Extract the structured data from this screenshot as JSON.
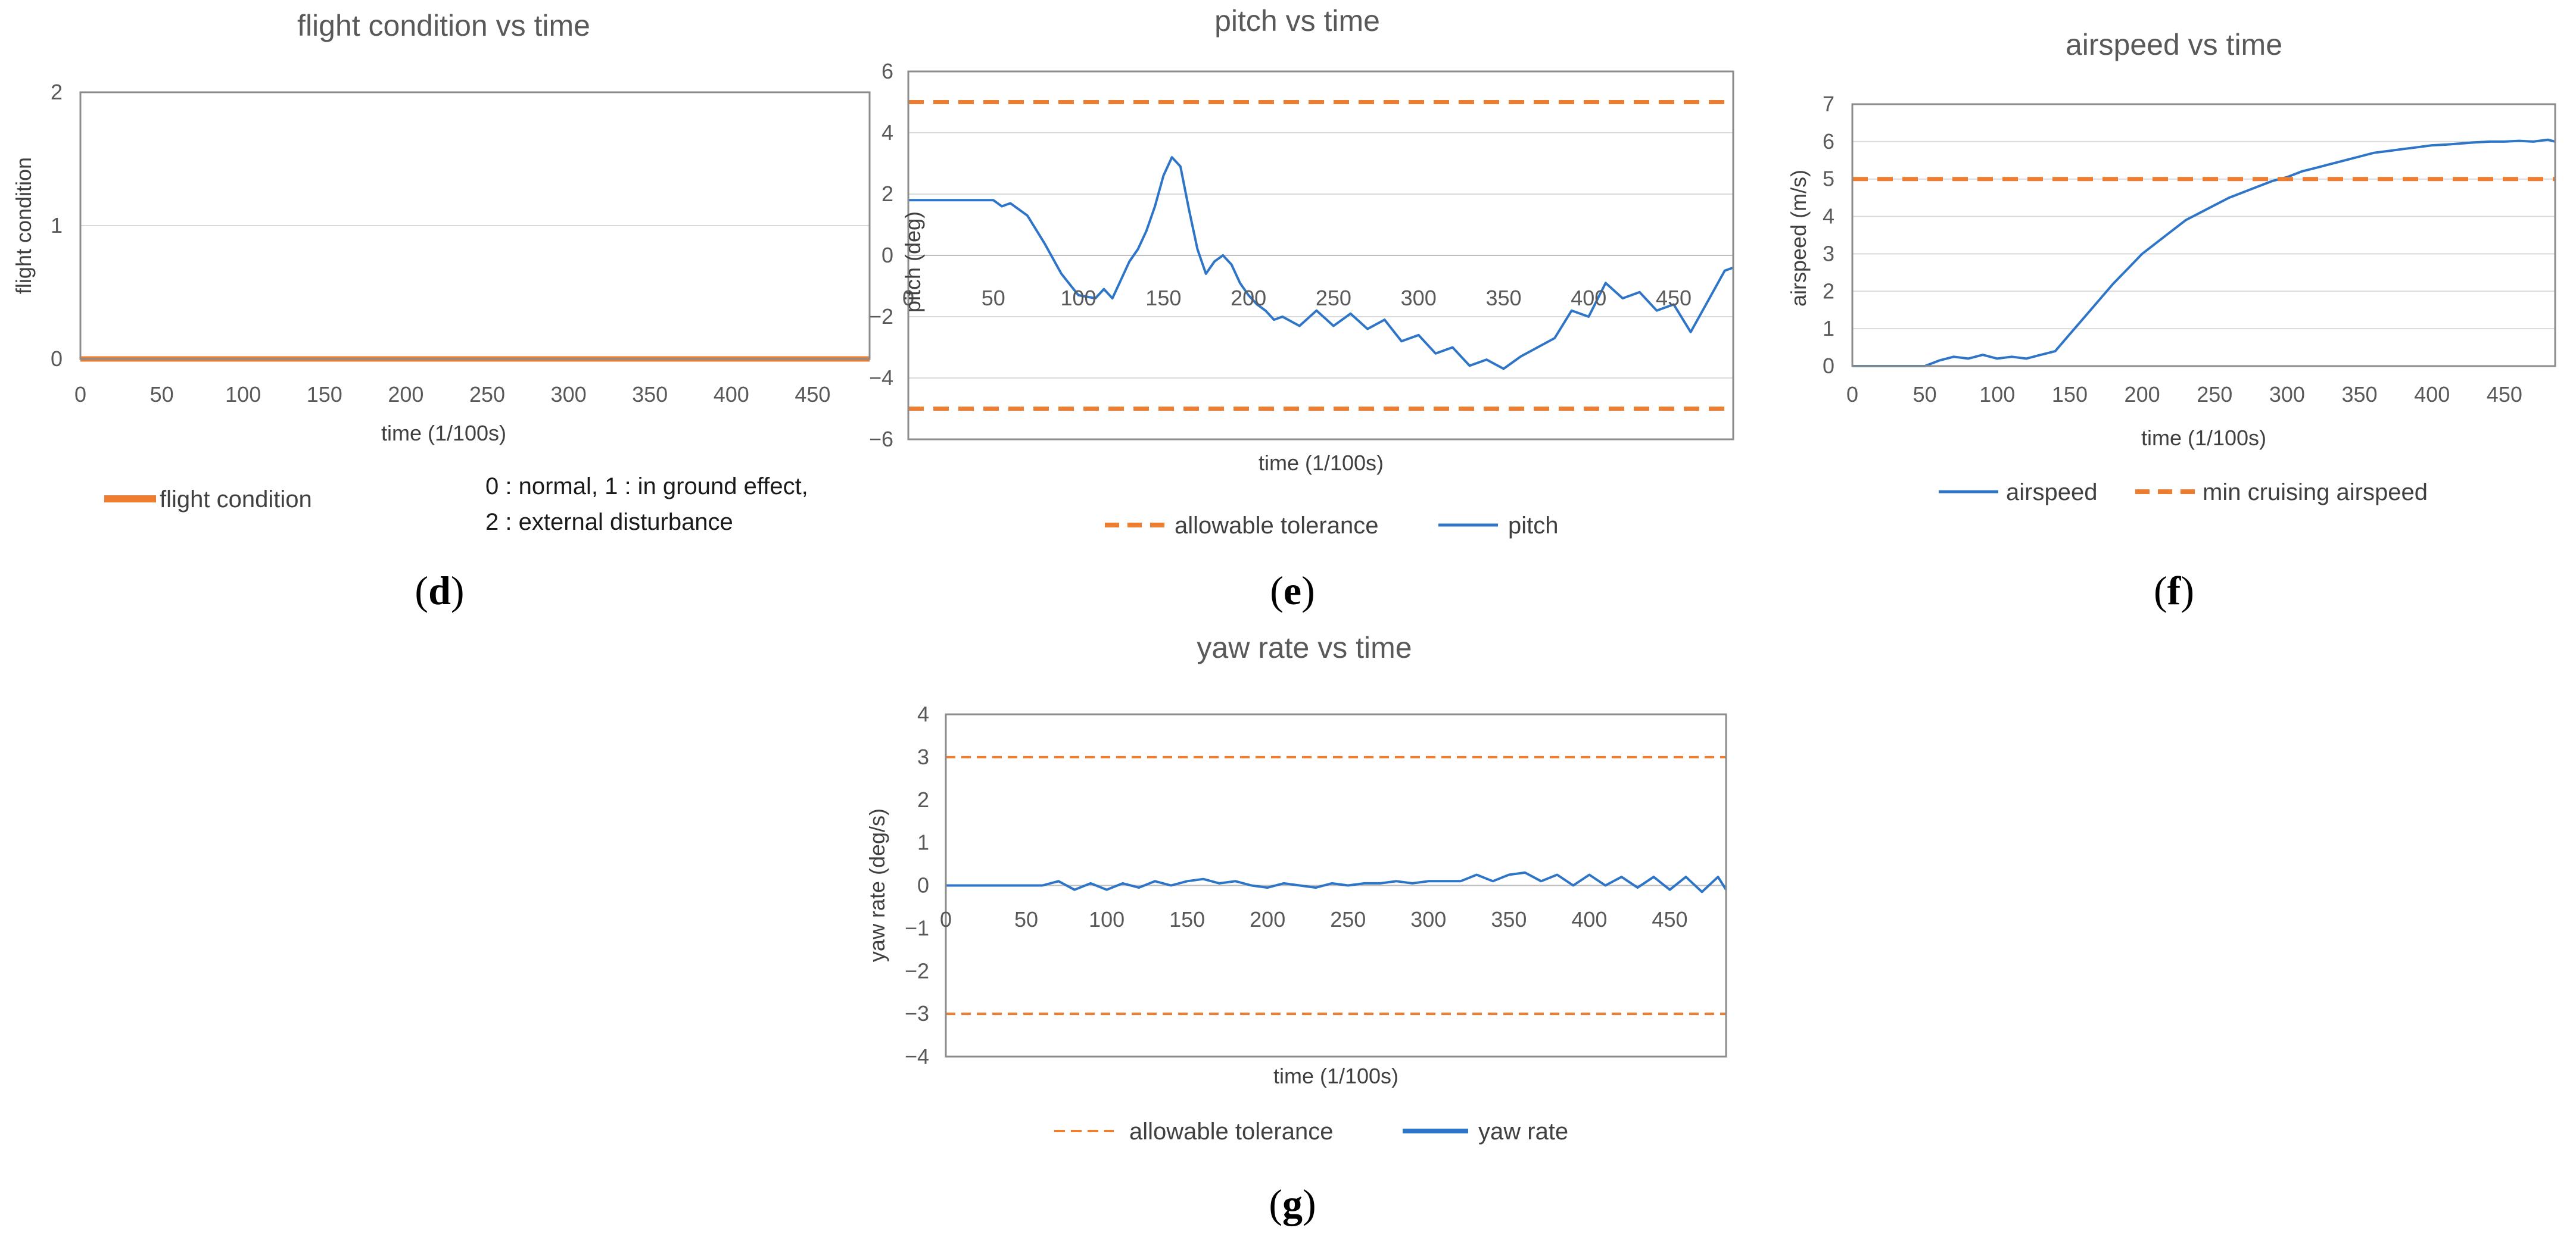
{
  "colors": {
    "orange": "#ED7D31",
    "blue": "#2E75C8",
    "grid": "#D9D9D9",
    "axis": "#595959"
  },
  "captions": {
    "d": "d",
    "e": "e",
    "f": "f",
    "g": "g"
  },
  "chart_data": [
    {
      "id": "d",
      "type": "line",
      "title": "flight condition vs time",
      "xlabel": "time (1/100s)",
      "ylabel": "flight condition",
      "xlim": [
        0,
        485
      ],
      "ylim": [
        0,
        2
      ],
      "xticks": [
        0,
        50,
        100,
        150,
        200,
        250,
        300,
        350,
        400,
        450
      ],
      "yticks": [
        0,
        1,
        2
      ],
      "series": [
        {
          "name": "flight condition",
          "color": "#ED7D31",
          "style": "solid",
          "x": [
            0,
            485
          ],
          "values": [
            0,
            0
          ]
        }
      ],
      "note": [
        "0 : normal, 1 : in ground effect,",
        "2 : external disturbance"
      ]
    },
    {
      "id": "e",
      "type": "line",
      "title": "pitch vs time",
      "xlabel": "time (1/100s)",
      "ylabel": "pitch (deg)",
      "xlim": [
        0,
        485
      ],
      "ylim": [
        -6,
        6
      ],
      "xticks": [
        0,
        50,
        100,
        150,
        200,
        250,
        300,
        350,
        400,
        450
      ],
      "yticks": [
        -6,
        -4,
        -2,
        0,
        2,
        4,
        6
      ],
      "ytick_labels": [
        "−6",
        "−4",
        "−2",
        "0",
        "2",
        "4",
        "6"
      ],
      "series": [
        {
          "name": "allowable tolerance",
          "color": "#ED7D31",
          "style": "dashed",
          "x": [
            0,
            485
          ],
          "values": [
            5,
            5
          ]
        },
        {
          "name": "allowable tolerance",
          "color": "#ED7D31",
          "style": "dashed",
          "x": [
            0,
            485
          ],
          "values": [
            -5,
            -5
          ],
          "legend": false
        },
        {
          "name": "pitch",
          "color": "#2E75C8",
          "style": "solid",
          "x": [
            0,
            50,
            55,
            60,
            70,
            80,
            90,
            100,
            110,
            115,
            120,
            125,
            130,
            135,
            140,
            145,
            150,
            155,
            160,
            165,
            170,
            175,
            180,
            185,
            190,
            195,
            200,
            205,
            210,
            215,
            220,
            230,
            240,
            250,
            260,
            270,
            280,
            290,
            300,
            310,
            320,
            330,
            340,
            350,
            360,
            370,
            380,
            390,
            400,
            410,
            420,
            430,
            440,
            450,
            460,
            470,
            480,
            485
          ],
          "values": [
            1.8,
            1.8,
            1.6,
            1.7,
            1.3,
            0.4,
            -0.6,
            -1.3,
            -1.4,
            -1.1,
            -1.4,
            -0.8,
            -0.2,
            0.2,
            0.8,
            1.6,
            2.6,
            3.2,
            2.9,
            1.5,
            0.2,
            -0.6,
            -0.2,
            0.0,
            -0.3,
            -0.9,
            -1.3,
            -1.6,
            -1.8,
            -2.1,
            -2.0,
            -2.3,
            -1.8,
            -2.3,
            -1.9,
            -2.4,
            -2.1,
            -2.8,
            -2.6,
            -3.2,
            -3.0,
            -3.6,
            -3.4,
            -3.7,
            -3.3,
            -3.0,
            -2.7,
            -1.8,
            -2.0,
            -0.9,
            -1.4,
            -1.2,
            -1.8,
            -1.6,
            -2.5,
            -1.5,
            -0.5,
            -0.4
          ]
        }
      ]
    },
    {
      "id": "f",
      "type": "line",
      "title": "airspeed vs time",
      "xlabel": "time (1/100s)",
      "ylabel": "airspeed (m/s)",
      "xlim": [
        0,
        485
      ],
      "ylim": [
        0,
        7
      ],
      "xticks": [
        0,
        50,
        100,
        150,
        200,
        250,
        300,
        350,
        400,
        450
      ],
      "yticks": [
        0,
        1,
        2,
        3,
        4,
        5,
        6,
        7
      ],
      "series": [
        {
          "name": "airspeed",
          "color": "#2E75C8",
          "style": "solid",
          "x": [
            0,
            50,
            60,
            70,
            80,
            90,
            100,
            110,
            120,
            130,
            140,
            150,
            160,
            170,
            180,
            190,
            200,
            210,
            220,
            230,
            240,
            250,
            260,
            270,
            280,
            290,
            300,
            310,
            320,
            330,
            340,
            350,
            360,
            370,
            380,
            390,
            400,
            410,
            420,
            430,
            440,
            450,
            460,
            470,
            480,
            485
          ],
          "values": [
            0.0,
            0.0,
            0.15,
            0.25,
            0.2,
            0.3,
            0.2,
            0.25,
            0.2,
            0.3,
            0.4,
            0.85,
            1.3,
            1.75,
            2.2,
            2.6,
            3.0,
            3.3,
            3.6,
            3.9,
            4.1,
            4.3,
            4.5,
            4.65,
            4.8,
            4.95,
            5.05,
            5.2,
            5.3,
            5.4,
            5.5,
            5.6,
            5.7,
            5.75,
            5.8,
            5.85,
            5.9,
            5.92,
            5.95,
            5.98,
            6.0,
            6.0,
            6.02,
            6.0,
            6.05,
            6.0
          ]
        },
        {
          "name": "min cruising airspeed",
          "color": "#ED7D31",
          "style": "dashed",
          "x": [
            0,
            485
          ],
          "values": [
            5,
            5
          ]
        }
      ]
    },
    {
      "id": "g",
      "type": "line",
      "title": "yaw rate vs time",
      "xlabel": "time (1/100s)",
      "ylabel": "yaw rate  (deg/s)",
      "xlim": [
        0,
        485
      ],
      "ylim": [
        -4,
        4
      ],
      "xticks": [
        0,
        50,
        100,
        150,
        200,
        250,
        300,
        350,
        400,
        450
      ],
      "yticks": [
        -4,
        -3,
        -2,
        -1,
        0,
        1,
        2,
        3,
        4
      ],
      "ytick_labels": [
        "−4",
        "−3",
        "−2",
        "−1",
        "0",
        "1",
        "2",
        "3",
        "4"
      ],
      "series": [
        {
          "name": "allowable tolerance",
          "color": "#ED7D31",
          "style": "dashed",
          "x": [
            0,
            485
          ],
          "values": [
            3,
            3
          ]
        },
        {
          "name": "allowable tolerance",
          "color": "#ED7D31",
          "style": "dashed",
          "x": [
            0,
            485
          ],
          "values": [
            -3,
            -3
          ],
          "legend": false
        },
        {
          "name": "yaw rate",
          "color": "#2E75C8",
          "style": "solid",
          "x": [
            0,
            60,
            70,
            80,
            90,
            100,
            110,
            120,
            130,
            140,
            150,
            160,
            170,
            180,
            190,
            200,
            210,
            220,
            230,
            240,
            250,
            260,
            270,
            280,
            290,
            300,
            310,
            320,
            330,
            340,
            350,
            360,
            370,
            380,
            390,
            400,
            410,
            420,
            430,
            440,
            450,
            460,
            470,
            480,
            485
          ],
          "values": [
            0.0,
            0.0,
            0.1,
            -0.1,
            0.05,
            -0.1,
            0.05,
            -0.05,
            0.1,
            0.0,
            0.1,
            0.15,
            0.05,
            0.1,
            0.0,
            -0.05,
            0.05,
            0.0,
            -0.05,
            0.05,
            0.0,
            0.05,
            0.05,
            0.1,
            0.05,
            0.1,
            0.1,
            0.1,
            0.25,
            0.1,
            0.25,
            0.3,
            0.1,
            0.25,
            0.0,
            0.25,
            0.0,
            0.2,
            -0.05,
            0.2,
            -0.1,
            0.2,
            -0.15,
            0.2,
            -0.1
          ]
        }
      ]
    }
  ]
}
